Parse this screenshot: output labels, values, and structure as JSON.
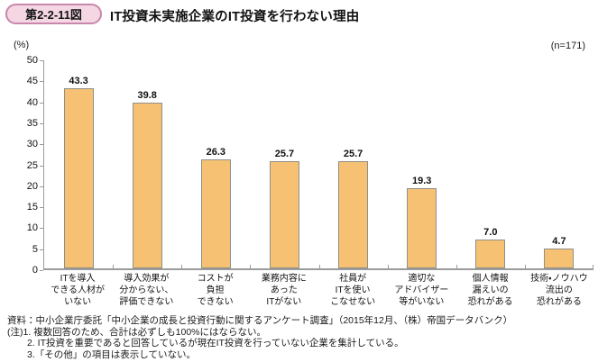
{
  "header": {
    "figure_label": "第2-2-11図",
    "title": "IT投資未実施企業のIT投資を行わない理由"
  },
  "chart_data": {
    "type": "bar",
    "title": "IT投資未実施企業のIT投資を行わない理由",
    "unit_label": "(%)",
    "sample_size_label": "(n=171)",
    "ylim": [
      0,
      50
    ],
    "yticks": [
      0,
      5,
      10,
      15,
      20,
      25,
      30,
      35,
      40,
      45,
      50
    ],
    "grid": false,
    "legend": "none",
    "categories": [
      [
        "ITを導入",
        "できる人材が",
        "いない"
      ],
      [
        "導入効果が",
        "分からない、",
        "評価できない"
      ],
      [
        "コストが",
        "負担",
        "できない"
      ],
      [
        "業務内容に",
        "あった",
        "ITがない"
      ],
      [
        "社員が",
        "ITを使い",
        "こなせない"
      ],
      [
        "適切な",
        "アドバイザー",
        "等がいない"
      ],
      [
        "個人情報",
        "漏えいの",
        "恐れがある"
      ],
      [
        "技術・ノウハウ",
        "流出の",
        "恐れがある"
      ]
    ],
    "values": [
      43.3,
      39.8,
      26.3,
      25.7,
      25.7,
      19.3,
      7.0,
      4.7
    ],
    "value_labels": [
      "43.3",
      "39.8",
      "26.3",
      "25.7",
      "25.7",
      "19.3",
      "7.0",
      "4.7"
    ],
    "bar_fill": "#f7c173",
    "bar_border": "#8f8f89",
    "axis_color": "#9b9b9b"
  },
  "footer": {
    "source": "資料：中小企業庁委託「中小企業の成長と投資行動に関するアンケート調査」（2015年12月、（株）帝国データバンク）",
    "notes": [
      "(注)1. 複数回答のため、合計は必ずしも100%にはならない。",
      "2. IT投資を重要であると回答しているが現在IT投資を行っていない企業を集計している。",
      "3.「その他」の項目は表示していない。"
    ]
  },
  "colors": {
    "badge_bg": "#f4d7e3",
    "badge_border": "#c987ab"
  }
}
